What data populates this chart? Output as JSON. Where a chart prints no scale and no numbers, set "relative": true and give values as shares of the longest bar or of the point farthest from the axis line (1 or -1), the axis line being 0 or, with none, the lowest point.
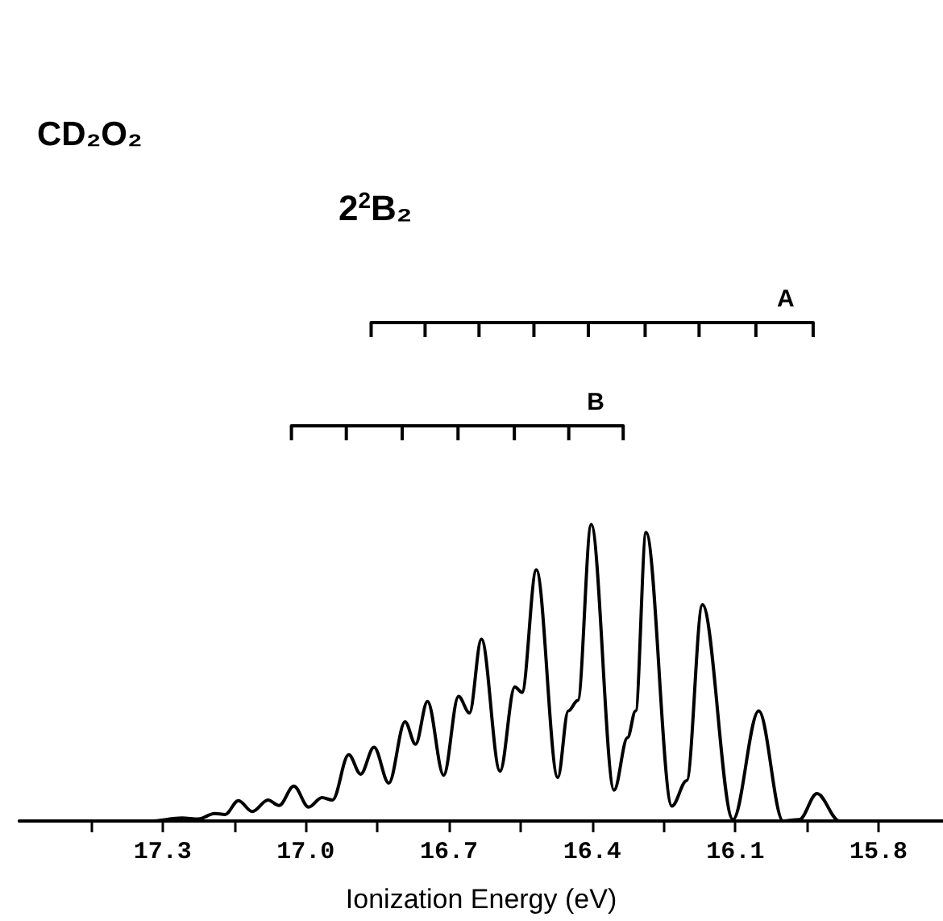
{
  "chart_data": {
    "type": "line",
    "title": "CD₂O₂",
    "subtitle": "2$^{2}$B₂",
    "xlabel": "Ionization Energy (eV)",
    "relative": true,
    "legend": false,
    "grid": false,
    "marker": "none",
    "line_style": "solid",
    "xlim": [
      17.6,
      15.665
    ],
    "xticks": [
      {
        "value": 17.45,
        "label": null
      },
      "17.3",
      {
        "value": 17.15,
        "label": null
      },
      {
        "value": 17,
        "label": "17.0"
      },
      {
        "value": 16.85,
        "label": null
      },
      16.7,
      {
        "value": 16.55,
        "label": null
      },
      16.4,
      {
        "value": 16.25,
        "label": null
      },
      16.1,
      {
        "value": 15.95,
        "label": null
      },
      15.8
    ],
    "series": [
      {
        "color": "#000000",
        "x": [
          17.6,
          17.326,
          17.259,
          17.225,
          17.191,
          17.169,
          17.141,
          17.112,
          17.079,
          17.056,
          17.025,
          16.994,
          16.966,
          16.944,
          16.91,
          16.885,
          16.857,
          16.826,
          16.792,
          16.77,
          16.745,
          16.711,
          16.68,
          16.657,
          16.632,
          16.593,
          16.562,
          16.547,
          16.517,
          16.472,
          16.45,
          16.43,
          16.402,
          16.354,
          16.326,
          16.309,
          16.287,
          16.233,
          16.202,
          16.169,
          16.105,
          16.051,
          16.0,
          15.966,
          15.929,
          15.882,
          15.669
        ],
        "values": [
          0,
          0,
          0.006,
          0.004,
          0.015,
          0.013,
          0.041,
          0.019,
          0.042,
          0.031,
          0.07,
          0.028,
          0.047,
          0.042,
          0.133,
          0.094,
          0.148,
          0.076,
          0.199,
          0.154,
          0.24,
          0.092,
          0.25,
          0.217,
          0.365,
          0.1,
          0.269,
          0.258,
          0.504,
          0.087,
          0.221,
          0.242,
          0.595,
          0.062,
          0.167,
          0.221,
          0.579,
          0.03,
          0.081,
          0.434,
          0.003,
          0.221,
          0,
          0.003,
          0.055,
          0,
          0
        ]
      },
      {
        "name": "A",
        "color": "#000000",
        "x": [
          16.863,
          16.75,
          16.637,
          16.522,
          16.408,
          16.289,
          16.176,
          16.057,
          15.937
        ],
        "values": [
          1,
          1,
          1,
          1,
          1,
          1,
          1,
          1,
          1
        ]
      },
      {
        "name": "B",
        "color": "#000000",
        "x": [
          17.03,
          16.915,
          16.798,
          16.681,
          16.563,
          16.449,
          16.335
        ],
        "values": [
          0.793,
          0.793,
          0.793,
          0.793,
          0.793,
          0.793,
          0.793
        ]
      }
    ]
  }
}
